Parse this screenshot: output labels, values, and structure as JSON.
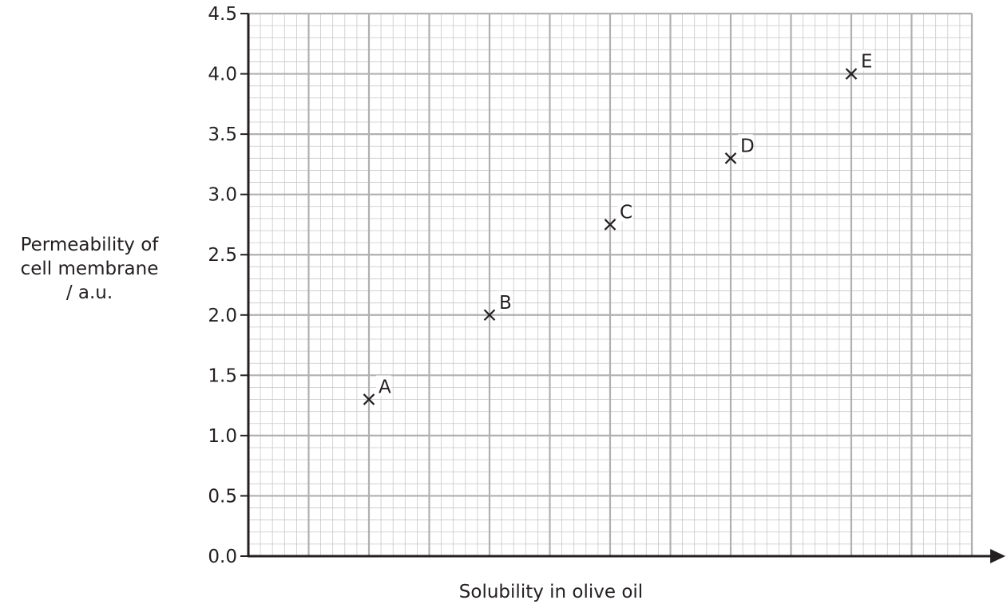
{
  "chart_data": {
    "type": "scatter",
    "title": "",
    "xlabel": "Solubility in olive oil",
    "ylabel_lines": [
      "Permeability of",
      "cell membrane",
      "/ a.u."
    ],
    "ylim": [
      0,
      4.5
    ],
    "yticks": [
      "0.0",
      "0.5",
      "1.0",
      "1.5",
      "2.0",
      "2.5",
      "3.0",
      "3.5",
      "4.0",
      "4.5"
    ],
    "xlim": [
      0,
      12
    ],
    "x_ticks_labeled": false,
    "grid": true,
    "marker": "x",
    "points": [
      {
        "label": "A",
        "x": 2,
        "y": 1.3
      },
      {
        "label": "B",
        "x": 4,
        "y": 2.0
      },
      {
        "label": "C",
        "x": 6,
        "y": 2.75
      },
      {
        "label": "D",
        "x": 8,
        "y": 3.3
      },
      {
        "label": "E",
        "x": 10,
        "y": 4.0
      }
    ]
  }
}
